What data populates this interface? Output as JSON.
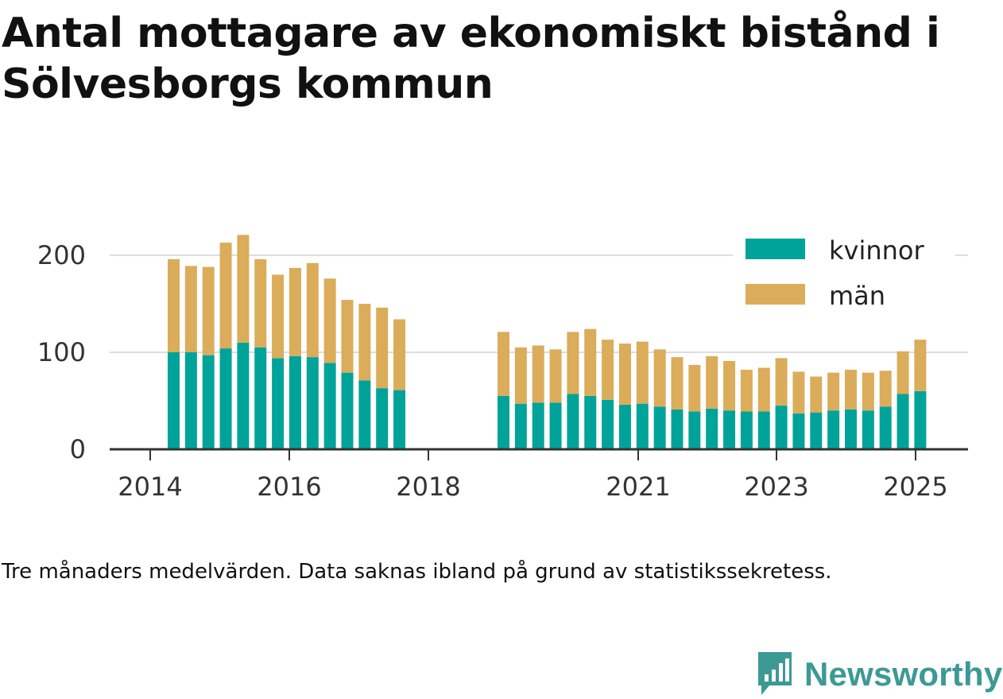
{
  "title": "Antal mottagare av ekonomiskt bistånd i Sölvesborgs kommun",
  "footnote": "Tre månaders medelvärden. Data saknas ibland på grund av statistikssekretess.",
  "brand": "Newsworthy",
  "colors": {
    "kvinnor": "#00a39a",
    "man": "#dbac5a",
    "grid": "#dddddd",
    "axis": "#333333",
    "brand": "#3d9994"
  },
  "chart_data": {
    "type": "bar",
    "stacked": true,
    "ylim": [
      0,
      200
    ],
    "yticks": [
      0,
      100,
      200
    ],
    "xticks": [
      "2014",
      "2016",
      "2018",
      "2021",
      "2023",
      "2025"
    ],
    "grid": true,
    "legend_position": "top-right",
    "series": [
      {
        "name": "kvinnor",
        "segments": [
          [
            100,
            100,
            97,
            104,
            110,
            105,
            94,
            96,
            95,
            89,
            79,
            71,
            63,
            61
          ],
          [
            55,
            47,
            48,
            48,
            57,
            55,
            51,
            46,
            47,
            44,
            41,
            39,
            42,
            40,
            39,
            39,
            45,
            37,
            38,
            40,
            41,
            40,
            44,
            57,
            60
          ]
        ]
      },
      {
        "name": "män",
        "segments": [
          [
            96,
            89,
            91,
            109,
            111,
            91,
            86,
            91,
            97,
            87,
            75,
            79,
            83,
            73
          ],
          [
            66,
            58,
            59,
            55,
            64,
            69,
            62,
            63,
            64,
            59,
            54,
            48,
            54,
            51,
            43,
            45,
            49,
            43,
            37,
            39,
            41,
            39,
            37,
            44,
            53
          ]
        ]
      }
    ]
  }
}
